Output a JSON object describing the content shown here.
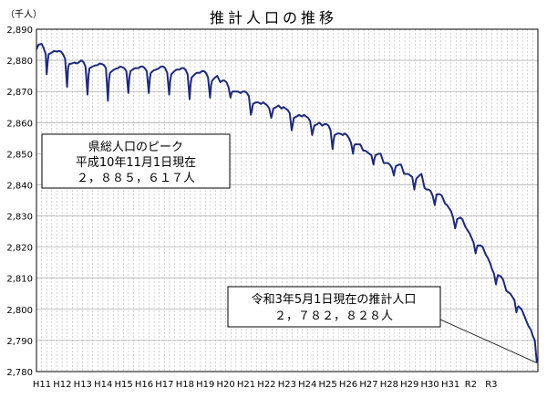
{
  "chart_data": {
    "type": "line",
    "title": "推計人口の推移",
    "unit_label": "（千人）",
    "ylim": [
      2780,
      2890
    ],
    "y_ticks": [
      "2,780",
      "2,790",
      "2,800",
      "2,810",
      "2,820",
      "2,830",
      "2,840",
      "2,850",
      "2,860",
      "2,870",
      "2,880",
      "2,890"
    ],
    "x_ticks": [
      "H11",
      "H12",
      "H13",
      "H14",
      "H15",
      "H16",
      "H17",
      "H18",
      "H19",
      "H20",
      "H21",
      "H22",
      "H23",
      "H24",
      "H25",
      "H26",
      "H27",
      "H28",
      "H29",
      "H30",
      "H31",
      "R2",
      "R3"
    ],
    "grid": true,
    "series": [
      {
        "color": "#1f2a7a",
        "values": [
          [
            1999.0,
            2883.5
          ],
          [
            1999.1,
            2885.0
          ],
          [
            1999.25,
            2885.3
          ],
          [
            1999.35,
            2884.0
          ],
          [
            1999.45,
            2882.0
          ],
          [
            1999.5,
            2875.5
          ],
          [
            1999.55,
            2879.5
          ],
          [
            1999.6,
            2882.0
          ],
          [
            1999.75,
            2882.5
          ],
          [
            1999.85,
            2883.0
          ],
          [
            2000.0,
            2882.8
          ],
          [
            2000.1,
            2883.0
          ],
          [
            2000.2,
            2882.8
          ],
          [
            2000.3,
            2882.0
          ],
          [
            2000.4,
            2880.5
          ],
          [
            2000.5,
            2871.5
          ],
          [
            2000.55,
            2877.5
          ],
          [
            2000.6,
            2878.8
          ],
          [
            2000.75,
            2879.0
          ],
          [
            2000.85,
            2879.3
          ],
          [
            2001.0,
            2879.0
          ],
          [
            2001.1,
            2879.5
          ],
          [
            2001.2,
            2880.0
          ],
          [
            2001.3,
            2879.5
          ],
          [
            2001.4,
            2878.0
          ],
          [
            2001.5,
            2869.0
          ],
          [
            2001.55,
            2875.0
          ],
          [
            2001.6,
            2877.5
          ],
          [
            2001.75,
            2878.0
          ],
          [
            2001.85,
            2878.3
          ],
          [
            2002.0,
            2878.5
          ],
          [
            2002.1,
            2879.0
          ],
          [
            2002.2,
            2878.8
          ],
          [
            2002.3,
            2878.5
          ],
          [
            2002.4,
            2877.5
          ],
          [
            2002.5,
            2867.0
          ],
          [
            2002.55,
            2873.5
          ],
          [
            2002.6,
            2876.0
          ],
          [
            2002.75,
            2876.8
          ],
          [
            2002.85,
            2877.2
          ],
          [
            2003.0,
            2877.5
          ],
          [
            2003.1,
            2878.0
          ],
          [
            2003.2,
            2877.8
          ],
          [
            2003.3,
            2877.5
          ],
          [
            2003.4,
            2876.5
          ],
          [
            2003.5,
            2869.5
          ],
          [
            2003.55,
            2874.5
          ],
          [
            2003.6,
            2876.5
          ],
          [
            2003.75,
            2877.2
          ],
          [
            2003.85,
            2877.5
          ],
          [
            2004.0,
            2877.5
          ],
          [
            2004.1,
            2878.0
          ],
          [
            2004.2,
            2878.0
          ],
          [
            2004.3,
            2877.5
          ],
          [
            2004.4,
            2876.5
          ],
          [
            2004.5,
            2869.5
          ],
          [
            2004.55,
            2874.0
          ],
          [
            2004.6,
            2876.0
          ],
          [
            2004.75,
            2876.8
          ],
          [
            2004.85,
            2877.0
          ],
          [
            2005.0,
            2877.5
          ],
          [
            2005.1,
            2878.0
          ],
          [
            2005.2,
            2878.0
          ],
          [
            2005.3,
            2877.5
          ],
          [
            2005.4,
            2876.0
          ],
          [
            2005.5,
            2869.0
          ],
          [
            2005.55,
            2873.5
          ],
          [
            2005.6,
            2875.5
          ],
          [
            2005.75,
            2876.5
          ],
          [
            2005.85,
            2877.0
          ],
          [
            2006.0,
            2877.0
          ],
          [
            2006.1,
            2877.5
          ],
          [
            2006.2,
            2877.5
          ],
          [
            2006.3,
            2877.0
          ],
          [
            2006.4,
            2875.5
          ],
          [
            2006.5,
            2867.5
          ],
          [
            2006.55,
            2872.5
          ],
          [
            2006.6,
            2874.5
          ],
          [
            2006.75,
            2875.5
          ],
          [
            2006.85,
            2876.0
          ],
          [
            2007.0,
            2876.0
          ],
          [
            2007.1,
            2876.5
          ],
          [
            2007.2,
            2876.5
          ],
          [
            2007.3,
            2876.0
          ],
          [
            2007.4,
            2874.5
          ],
          [
            2007.5,
            2868.0
          ],
          [
            2007.55,
            2872.0
          ],
          [
            2007.6,
            2873.5
          ],
          [
            2007.75,
            2874.5
          ],
          [
            2007.85,
            2875.0
          ],
          [
            2008.0,
            2873.0
          ],
          [
            2008.1,
            2873.5
          ],
          [
            2008.2,
            2873.5
          ],
          [
            2008.3,
            2873.0
          ],
          [
            2008.4,
            2871.5
          ],
          [
            2008.5,
            2868.0
          ],
          [
            2008.55,
            2869.5
          ],
          [
            2008.6,
            2870.0
          ],
          [
            2008.75,
            2870.0
          ],
          [
            2008.85,
            2870.0
          ],
          [
            2009.0,
            2869.5
          ],
          [
            2009.1,
            2870.0
          ],
          [
            2009.2,
            2870.0
          ],
          [
            2009.3,
            2869.5
          ],
          [
            2009.4,
            2868.5
          ],
          [
            2009.5,
            2862.5
          ],
          [
            2009.55,
            2864.0
          ],
          [
            2009.6,
            2866.0
          ],
          [
            2009.75,
            2866.5
          ],
          [
            2009.85,
            2866.5
          ],
          [
            2010.0,
            2866.0
          ],
          [
            2010.1,
            2866.5
          ],
          [
            2010.2,
            2866.0
          ],
          [
            2010.3,
            2865.5
          ],
          [
            2010.4,
            2864.5
          ],
          [
            2010.5,
            2861.5
          ],
          [
            2010.55,
            2863.0
          ],
          [
            2010.6,
            2864.5
          ],
          [
            2010.75,
            2865.0
          ],
          [
            2010.85,
            2865.5
          ],
          [
            2011.0,
            2864.5
          ],
          [
            2011.1,
            2865.0
          ],
          [
            2011.2,
            2864.5
          ],
          [
            2011.3,
            2864.0
          ],
          [
            2011.4,
            2863.0
          ],
          [
            2011.5,
            2857.5
          ],
          [
            2011.55,
            2859.5
          ],
          [
            2011.6,
            2861.5
          ],
          [
            2011.75,
            2862.0
          ],
          [
            2011.85,
            2862.5
          ],
          [
            2012.0,
            2862.0
          ],
          [
            2012.1,
            2862.5
          ],
          [
            2012.2,
            2862.0
          ],
          [
            2012.3,
            2861.5
          ],
          [
            2012.4,
            2860.5
          ],
          [
            2012.5,
            2856.0
          ],
          [
            2012.55,
            2857.5
          ],
          [
            2012.6,
            2859.0
          ],
          [
            2012.75,
            2859.5
          ],
          [
            2012.85,
            2860.0
          ],
          [
            2013.0,
            2859.0
          ],
          [
            2013.1,
            2859.5
          ],
          [
            2013.2,
            2859.5
          ],
          [
            2013.3,
            2859.0
          ],
          [
            2013.4,
            2857.5
          ],
          [
            2013.5,
            2851.5
          ],
          [
            2013.55,
            2854.5
          ],
          [
            2013.6,
            2856.0
          ],
          [
            2013.75,
            2856.5
          ],
          [
            2013.85,
            2856.5
          ],
          [
            2014.0,
            2856.0
          ],
          [
            2014.1,
            2856.5
          ],
          [
            2014.2,
            2856.0
          ],
          [
            2014.3,
            2855.0
          ],
          [
            2014.4,
            2853.5
          ],
          [
            2014.5,
            2850.0
          ],
          [
            2014.55,
            2852.5
          ],
          [
            2014.6,
            2853.0
          ],
          [
            2014.75,
            2853.0
          ],
          [
            2014.85,
            2853.0
          ],
          [
            2015.0,
            2851.0
          ],
          [
            2015.1,
            2851.0
          ],
          [
            2015.2,
            2850.5
          ],
          [
            2015.3,
            2850.0
          ],
          [
            2015.4,
            2849.5
          ],
          [
            2015.5,
            2846.5
          ],
          [
            2015.55,
            2848.5
          ],
          [
            2015.6,
            2849.5
          ],
          [
            2015.75,
            2850.0
          ],
          [
            2015.85,
            2850.0
          ],
          [
            2016.0,
            2847.0
          ],
          [
            2016.1,
            2847.0
          ],
          [
            2016.2,
            2847.0
          ],
          [
            2016.3,
            2846.5
          ],
          [
            2016.4,
            2845.5
          ],
          [
            2016.5,
            2843.0
          ],
          [
            2016.55,
            2845.0
          ],
          [
            2016.6,
            2846.0
          ],
          [
            2016.75,
            2846.5
          ],
          [
            2016.85,
            2846.5
          ],
          [
            2017.0,
            2843.5
          ],
          [
            2017.1,
            2843.5
          ],
          [
            2017.2,
            2843.5
          ],
          [
            2017.3,
            2843.0
          ],
          [
            2017.4,
            2842.5
          ],
          [
            2017.5,
            2838.5
          ],
          [
            2017.55,
            2840.5
          ],
          [
            2017.6,
            2842.0
          ],
          [
            2017.75,
            2843.0
          ],
          [
            2017.85,
            2843.5
          ],
          [
            2018.0,
            2839.0
          ],
          [
            2018.1,
            2838.5
          ],
          [
            2018.2,
            2838.5
          ],
          [
            2018.3,
            2838.0
          ],
          [
            2018.4,
            2836.5
          ],
          [
            2018.5,
            2833.5
          ],
          [
            2018.55,
            2835.5
          ],
          [
            2018.6,
            2837.0
          ],
          [
            2018.75,
            2837.0
          ],
          [
            2018.85,
            2836.5
          ],
          [
            2019.0,
            2834.0
          ],
          [
            2019.1,
            2833.5
          ],
          [
            2019.2,
            2832.5
          ],
          [
            2019.3,
            2831.5
          ],
          [
            2019.4,
            2829.5
          ],
          [
            2019.5,
            2826.0
          ],
          [
            2019.55,
            2827.5
          ],
          [
            2019.6,
            2829.0
          ],
          [
            2019.75,
            2829.5
          ],
          [
            2019.85,
            2829.0
          ],
          [
            2020.0,
            2826.5
          ],
          [
            2020.1,
            2825.5
          ],
          [
            2020.2,
            2824.5
          ],
          [
            2020.3,
            2823.0
          ],
          [
            2020.4,
            2821.5
          ],
          [
            2020.5,
            2818.0
          ],
          [
            2020.55,
            2819.5
          ],
          [
            2020.6,
            2820.5
          ],
          [
            2020.75,
            2820.5
          ],
          [
            2020.85,
            2820.0
          ],
          [
            2021.0,
            2817.5
          ],
          [
            2021.1,
            2816.5
          ],
          [
            2021.2,
            2815.0
          ],
          [
            2021.3,
            2813.0
          ],
          [
            2021.4,
            2811.5
          ],
          [
            2021.5,
            2808.0
          ],
          [
            2021.55,
            2810.0
          ],
          [
            2021.6,
            2811.0
          ],
          [
            2021.75,
            2810.5
          ],
          [
            2021.85,
            2809.5
          ],
          [
            2022.0,
            2806.0
          ],
          [
            2022.1,
            2805.5
          ],
          [
            2022.2,
            2805.0
          ],
          [
            2022.3,
            2804.0
          ],
          [
            2022.4,
            2803.0
          ],
          [
            2022.5,
            2799.0
          ],
          [
            2022.55,
            2800.5
          ],
          [
            2022.6,
            2801.0
          ],
          [
            2022.75,
            2800.0
          ],
          [
            2022.85,
            2798.5
          ],
          [
            2023.0,
            2796.0
          ],
          [
            2023.1,
            2794.5
          ],
          [
            2023.2,
            2793.5
          ],
          [
            2023.3,
            2791.5
          ],
          [
            2023.4,
            2790.0
          ],
          [
            2023.5,
            2782.8
          ]
        ]
      }
    ],
    "annotations": {
      "peak": {
        "lines": [
          "県総人口のピーク",
          "平成10年11月1日現在",
          "２，８８５，６１７人"
        ]
      },
      "current": {
        "lines": [
          "令和3年5月1日現在の推計人口",
          "２，７８２，８２８人"
        ]
      }
    }
  }
}
